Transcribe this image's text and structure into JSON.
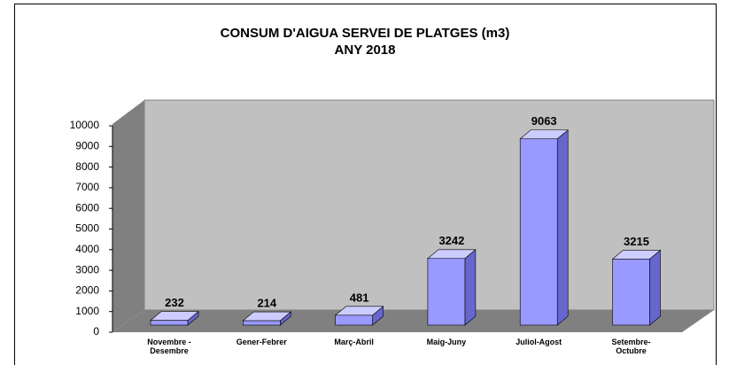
{
  "chart_data": {
    "type": "bar3d",
    "title": "CONSUM D'AIGUA SERVEI DE PLATGES (m3)",
    "subtitle": "ANY 2018",
    "categories": [
      "Novembre -\nDesembre",
      "Gener-Febrer",
      "Març-Abril",
      "Maig-Juny",
      "Juliol-Agost",
      "Setembre-\nOctubre"
    ],
    "values": [
      232,
      214,
      481,
      3242,
      9063,
      3215
    ],
    "color": "#9999ff",
    "ylim": [
      0,
      10000
    ],
    "yticks": [
      0,
      1000,
      2000,
      3000,
      4000,
      5000,
      6000,
      7000,
      8000,
      9000,
      10000
    ]
  }
}
